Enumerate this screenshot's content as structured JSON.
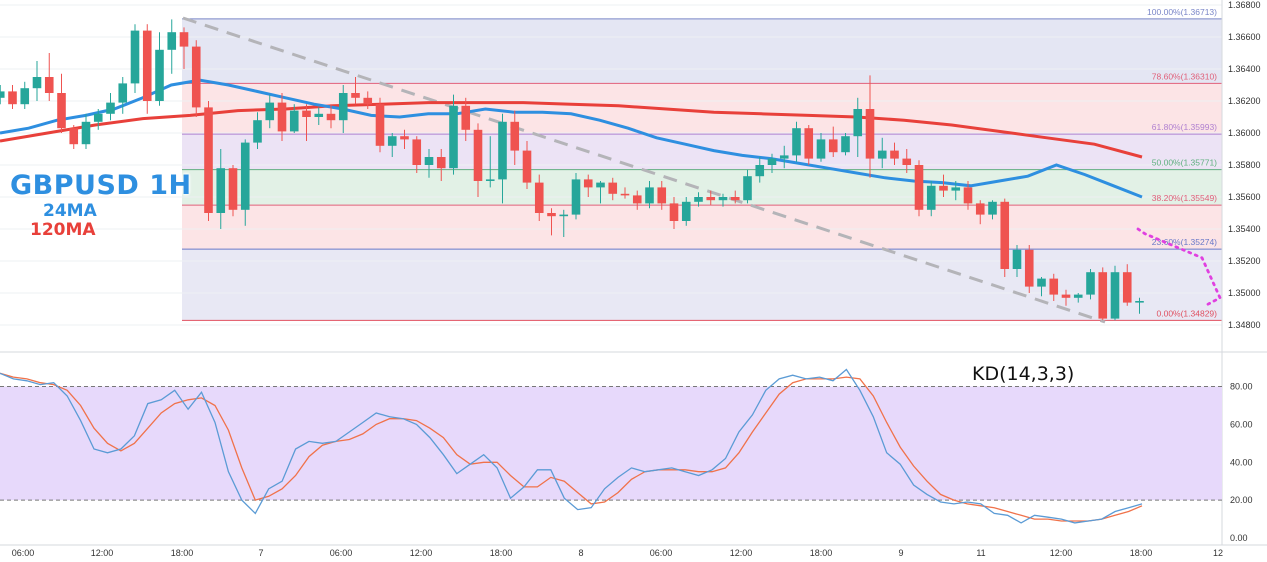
{
  "title": "GBPUSD 1H",
  "ma_labels": [
    "24MA",
    "120MA"
  ],
  "kd_label": "KD(14,3,3)",
  "colors": {
    "bull": "#26a69a",
    "bear": "#ef5350",
    "ma24": "#2e8fe0",
    "ma120": "#e8403a",
    "kd_k": "#5b9bd5",
    "kd_d": "#f0724a",
    "kd_band": "#e7d9fb",
    "projection": "#e040e0",
    "trend": "#b4b4b8"
  },
  "chart_data": [
    {
      "type": "candlestick",
      "symbol": "GBPUSD",
      "timeframe": "1H",
      "ylim": [
        1.3471,
        1.368
      ],
      "y_ticks": [
        "1.34800",
        "1.35000",
        "1.35200",
        "1.35400",
        "1.35600",
        "1.35800",
        "1.36000",
        "1.36200",
        "1.36400",
        "1.36600",
        "1.36800"
      ],
      "x_ticks": [
        "06:00",
        "12:00",
        "18:00",
        "7",
        "06:00",
        "12:00",
        "18:00",
        "8",
        "06:00",
        "12:00",
        "18:00",
        "9",
        "11",
        "12:00",
        "18:00",
        "12"
      ],
      "fib_levels": [
        {
          "label": "100.00%(1.36713)",
          "value": 1.36713
        },
        {
          "label": "78.60%(1.36310)",
          "value": 1.3631
        },
        {
          "label": "61.80%(1.35993)",
          "value": 1.35993
        },
        {
          "label": "50.00%(1.35771)",
          "value": 1.35771
        },
        {
          "label": "38.20%(1.35549)",
          "value": 1.35549
        },
        {
          "label": "23.60%(1.35274)",
          "value": 1.35274
        },
        {
          "label": "0.00%(1.34829)",
          "value": 1.34829
        }
      ],
      "candles": [
        [
          1.3628,
          1.3631,
          1.362,
          1.3622
        ],
        [
          1.3622,
          1.363,
          1.3618,
          1.3626
        ],
        [
          1.3626,
          1.363,
          1.3615,
          1.3618
        ],
        [
          1.3618,
          1.3632,
          1.3615,
          1.3628
        ],
        [
          1.3628,
          1.3645,
          1.362,
          1.3635
        ],
        [
          1.3635,
          1.365,
          1.362,
          1.3625
        ],
        [
          1.3625,
          1.3637,
          1.36,
          1.3603
        ],
        [
          1.3603,
          1.3605,
          1.359,
          1.3593
        ],
        [
          1.3593,
          1.3612,
          1.359,
          1.3607
        ],
        [
          1.3607,
          1.3615,
          1.3602,
          1.3612
        ],
        [
          1.3612,
          1.3625,
          1.3608,
          1.3619
        ],
        [
          1.3619,
          1.3635,
          1.3612,
          1.3631
        ],
        [
          1.3631,
          1.3668,
          1.3625,
          1.3664
        ],
        [
          1.3664,
          1.3668,
          1.3612,
          1.362
        ],
        [
          1.362,
          1.3663,
          1.3617,
          1.3652
        ],
        [
          1.3652,
          1.3671,
          1.3637,
          1.3663
        ],
        [
          1.3663,
          1.3666,
          1.364,
          1.3654
        ],
        [
          1.3654,
          1.3658,
          1.361,
          1.3616
        ],
        [
          1.3616,
          1.362,
          1.3545,
          1.355
        ],
        [
          1.355,
          1.359,
          1.354,
          1.3578
        ],
        [
          1.3578,
          1.358,
          1.3548,
          1.3552
        ],
        [
          1.3552,
          1.3596,
          1.3542,
          1.3594
        ],
        [
          1.3594,
          1.3613,
          1.359,
          1.3608
        ],
        [
          1.3608,
          1.3624,
          1.3603,
          1.3619
        ],
        [
          1.3619,
          1.3625,
          1.3595,
          1.3601
        ],
        [
          1.3601,
          1.3618,
          1.36,
          1.3614
        ],
        [
          1.3614,
          1.3618,
          1.3595,
          1.361
        ],
        [
          1.361,
          1.3616,
          1.3605,
          1.3612
        ],
        [
          1.3612,
          1.3618,
          1.3603,
          1.3608
        ],
        [
          1.3608,
          1.363,
          1.36,
          1.3625
        ],
        [
          1.3625,
          1.3635,
          1.3618,
          1.3622
        ],
        [
          1.3622,
          1.3626,
          1.3615,
          1.3618
        ],
        [
          1.3618,
          1.3622,
          1.3588,
          1.3592
        ],
        [
          1.3592,
          1.36,
          1.3585,
          1.3598
        ],
        [
          1.3598,
          1.3602,
          1.359,
          1.3596
        ],
        [
          1.3596,
          1.3598,
          1.3575,
          1.358
        ],
        [
          1.358,
          1.359,
          1.3572,
          1.3585
        ],
        [
          1.3585,
          1.359,
          1.357,
          1.3578
        ],
        [
          1.3578,
          1.3624,
          1.3574,
          1.3617
        ],
        [
          1.3617,
          1.3622,
          1.3595,
          1.3602
        ],
        [
          1.3602,
          1.3606,
          1.356,
          1.357
        ],
        [
          1.357,
          1.3598,
          1.3566,
          1.3571
        ],
        [
          1.3571,
          1.3612,
          1.3556,
          1.3607
        ],
        [
          1.3607,
          1.3614,
          1.358,
          1.3589
        ],
        [
          1.3589,
          1.3595,
          1.3565,
          1.3569
        ],
        [
          1.3569,
          1.3574,
          1.3545,
          1.355
        ],
        [
          1.355,
          1.3553,
          1.3536,
          1.3548
        ],
        [
          1.3548,
          1.3552,
          1.3535,
          1.3549
        ],
        [
          1.3549,
          1.3575,
          1.3546,
          1.3571
        ],
        [
          1.3571,
          1.3574,
          1.356,
          1.3566
        ],
        [
          1.3566,
          1.357,
          1.3556,
          1.3569
        ],
        [
          1.3569,
          1.3572,
          1.3558,
          1.3562
        ],
        [
          1.3562,
          1.3566,
          1.3559,
          1.3561
        ],
        [
          1.3561,
          1.3564,
          1.3552,
          1.3556
        ],
        [
          1.3556,
          1.357,
          1.3553,
          1.3566
        ],
        [
          1.3566,
          1.357,
          1.3552,
          1.3556
        ],
        [
          1.3556,
          1.356,
          1.354,
          1.3545
        ],
        [
          1.3545,
          1.356,
          1.3542,
          1.3557
        ],
        [
          1.3557,
          1.3563,
          1.3554,
          1.356
        ],
        [
          1.356,
          1.3564,
          1.3555,
          1.3558
        ],
        [
          1.3558,
          1.3562,
          1.3554,
          1.356
        ],
        [
          1.356,
          1.3564,
          1.3556,
          1.3558
        ],
        [
          1.3558,
          1.3577,
          1.3556,
          1.3573
        ],
        [
          1.3573,
          1.3585,
          1.3569,
          1.358
        ],
        [
          1.358,
          1.3587,
          1.3575,
          1.3584
        ],
        [
          1.3584,
          1.3592,
          1.3578,
          1.3586
        ],
        [
          1.3586,
          1.3607,
          1.3582,
          1.3603
        ],
        [
          1.3603,
          1.3605,
          1.358,
          1.3584
        ],
        [
          1.3584,
          1.36,
          1.3582,
          1.3596
        ],
        [
          1.3596,
          1.3604,
          1.3585,
          1.3588
        ],
        [
          1.3588,
          1.36,
          1.3586,
          1.3598
        ],
        [
          1.3598,
          1.3622,
          1.3585,
          1.3615
        ],
        [
          1.3615,
          1.3636,
          1.3572,
          1.3584
        ],
        [
          1.3584,
          1.3597,
          1.3578,
          1.3589
        ],
        [
          1.3589,
          1.3594,
          1.358,
          1.3584
        ],
        [
          1.3584,
          1.359,
          1.3575,
          1.358
        ],
        [
          1.358,
          1.3583,
          1.3548,
          1.3552
        ],
        [
          1.3552,
          1.357,
          1.3548,
          1.3567
        ],
        [
          1.3567,
          1.3574,
          1.356,
          1.3564
        ],
        [
          1.3564,
          1.357,
          1.3558,
          1.3566
        ],
        [
          1.3566,
          1.357,
          1.3552,
          1.3556
        ],
        [
          1.3556,
          1.3558,
          1.3543,
          1.3549
        ],
        [
          1.3549,
          1.3558,
          1.3546,
          1.3557
        ],
        [
          1.3557,
          1.3559,
          1.351,
          1.3515
        ],
        [
          1.3515,
          1.353,
          1.351,
          1.3527
        ],
        [
          1.3527,
          1.353,
          1.35,
          1.3504
        ],
        [
          1.3504,
          1.351,
          1.3498,
          1.3509
        ],
        [
          1.3509,
          1.3512,
          1.3495,
          1.3499
        ],
        [
          1.3499,
          1.3502,
          1.3492,
          1.3497
        ],
        [
          1.3497,
          1.35,
          1.3494,
          1.3499
        ],
        [
          1.3499,
          1.3515,
          1.3496,
          1.3513
        ],
        [
          1.3513,
          1.3516,
          1.3483,
          1.3484
        ],
        [
          1.3484,
          1.3517,
          1.3483,
          1.3513
        ],
        [
          1.3513,
          1.3518,
          1.3492,
          1.3494
        ],
        [
          1.3494,
          1.3497,
          1.3487,
          1.3495
        ]
      ],
      "ma24": [
        1.36,
        1.3603,
        1.3608,
        1.3611,
        1.3615,
        1.3622,
        1.363,
        1.3633,
        1.363,
        1.3626,
        1.3622,
        1.3618,
        1.3615,
        1.3611,
        1.361,
        1.3612,
        1.3612,
        1.3615,
        1.3613,
        1.3613,
        1.3612,
        1.3608,
        1.3603,
        1.3597,
        1.3593,
        1.3589,
        1.3586,
        1.3584,
        1.3581,
        1.3578,
        1.3575,
        1.3572,
        1.357,
        1.3569,
        1.3567,
        1.357,
        1.3573,
        1.358,
        1.3574,
        1.3567,
        1.356
      ],
      "ma120": [
        1.3595,
        1.36,
        1.3605,
        1.3609,
        1.3611,
        1.3614,
        1.3615,
        1.3617,
        1.3618,
        1.3619,
        1.3619,
        1.3619,
        1.3618,
        1.3617,
        1.3615,
        1.3613,
        1.3612,
        1.3611,
        1.361,
        1.3608,
        1.3605,
        1.3601,
        1.3597,
        1.3593,
        1.3585
      ],
      "projection": [
        [
          1.354,
          1.3537
        ],
        [
          1.3532,
          1.3522
        ],
        [
          1.3522,
          1.3497
        ],
        [
          1.3505,
          1.3493
        ]
      ]
    },
    {
      "type": "line",
      "title": "KD(14,3,3)",
      "ylim": [
        0,
        90
      ],
      "y_ticks": [
        "0.00",
        "20.00",
        "40.00",
        "60.00",
        "80.00"
      ],
      "bands": [
        20,
        80
      ],
      "k": [
        87,
        84,
        83,
        81,
        82,
        75,
        62,
        47,
        45,
        47,
        54,
        71,
        73,
        78,
        68,
        77,
        61,
        35,
        20,
        13,
        26,
        30,
        47,
        51,
        50,
        51,
        56,
        61,
        66,
        64,
        63,
        60,
        53,
        44,
        34,
        39,
        44,
        37,
        21,
        27,
        36,
        36,
        21,
        15,
        16,
        26,
        32,
        37,
        35,
        36,
        37,
        35,
        33,
        36,
        42,
        56,
        65,
        78,
        84,
        86,
        84,
        85,
        83,
        89,
        78,
        64,
        45,
        39,
        28,
        23,
        19,
        18,
        19,
        18,
        13,
        12,
        8,
        12,
        11,
        10,
        8,
        9,
        10,
        14,
        16,
        18
      ],
      "d": [
        87,
        85,
        84,
        82,
        81,
        78,
        70,
        58,
        50,
        46,
        50,
        58,
        66,
        71,
        73,
        74,
        70,
        57,
        37,
        20,
        22,
        26,
        33,
        43,
        49,
        51,
        52,
        55,
        60,
        63,
        63,
        62,
        58,
        53,
        44,
        39,
        40,
        40,
        33,
        27,
        27,
        32,
        30,
        24,
        18,
        19,
        24,
        31,
        35,
        36,
        36,
        36,
        35,
        35,
        37,
        45,
        56,
        66,
        76,
        82,
        84,
        84,
        84,
        85,
        84,
        75,
        61,
        48,
        38,
        30,
        23,
        20,
        18,
        17,
        16,
        14,
        12,
        10,
        10,
        9,
        9,
        9,
        10,
        12,
        14,
        17
      ]
    }
  ]
}
